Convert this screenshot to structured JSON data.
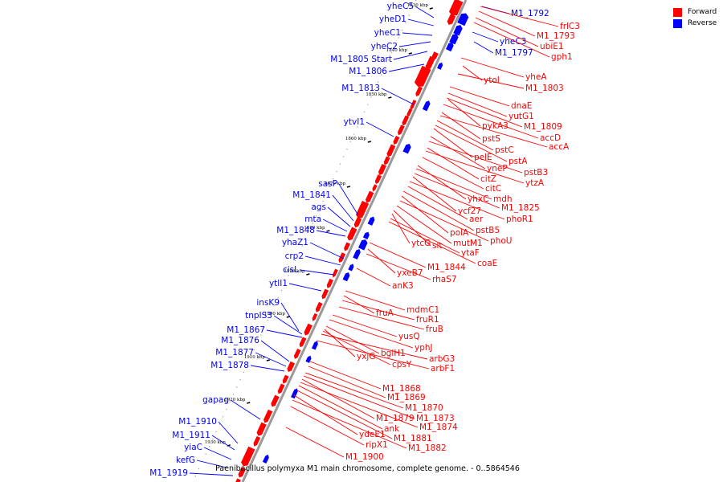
{
  "legend": {
    "forward_label": "Forward",
    "reverse_label": "Reverse",
    "forward_color": "#ff0000",
    "reverse_color": "#0000ff"
  },
  "caption": "Paenibacillus polymyxa M1 main chromosome, complete genome. - 0..5864546",
  "ticks": [
    "1830 kbp",
    "1840 kbp",
    "1850 kbp",
    "1860 kbp",
    "1870 kbp",
    "1880 kbp",
    "1890 kbp",
    "1900 kbp",
    "1910 kbp",
    "1920 kbp",
    "1930 kbp"
  ],
  "reverse_labels": [
    "yheC5",
    "yheD1",
    "yheC1",
    "yheC2",
    "M1_1805 Start",
    "M1_1806",
    "M1_1813",
    "ytvI1",
    "sasP",
    "M1_1841",
    "ags",
    "mta",
    "M1_1848",
    "yhaZ1",
    "crp2",
    "cisL",
    "ytlI1",
    "insK9",
    "tnpIS3",
    "M1_1867",
    "M1_1876",
    "M1_1877",
    "M1_1878",
    "gapag",
    "M1_1910",
    "M1_1911",
    "yiaC",
    "kefG",
    "M1_1919"
  ],
  "reverse_labels_right": [
    "M1_1792",
    "yheC3",
    "M1_1797"
  ],
  "forward_labels": [
    "frlC3",
    "M1_1793",
    "ubiE1",
    "gph1",
    "yheA",
    "ytoI",
    "M1_1803",
    "dnaE",
    "yutG1",
    "pykA3",
    "M1_1809",
    "accD",
    "pstS",
    "accA",
    "pstC",
    "pelE",
    "pstA",
    "yneP",
    "pstB3",
    "citZ",
    "ytzA",
    "citC",
    "yhxC",
    "mdh",
    "ycf27",
    "M1_1825",
    "aer",
    "phoR1",
    "polA",
    "pstB5",
    "mutM1",
    "phoU",
    "ytcG",
    "slt",
    "ytaF",
    "coaE",
    "M1_1844",
    "yxeB7",
    "rhaS7",
    "anK3",
    "mdmC1",
    "fruA",
    "fruR1",
    "fruB",
    "yusQ",
    "yphJ",
    "yxjG",
    "bglH1",
    "arbG3",
    "cpsY",
    "arbF1",
    "M1_1868",
    "M1_1869",
    "M1_1870",
    "M1_1879",
    "M1_1873",
    "ank",
    "M1_1874",
    "M1_1881",
    "ydeE1",
    "M1_1882",
    "ripX1",
    "M1_1900"
  ]
}
